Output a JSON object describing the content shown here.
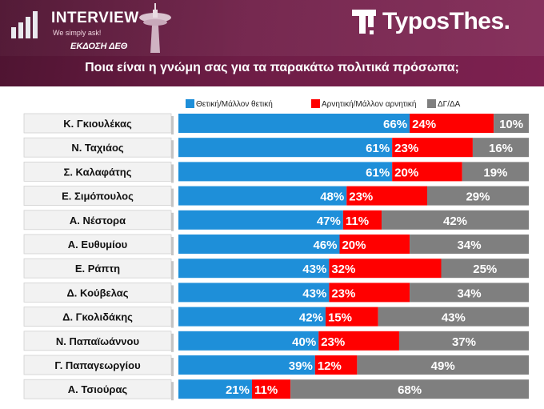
{
  "header": {
    "interview_title": "INTERVIEW",
    "interview_tagline": "We simply ask!",
    "edition_label": "ΕΚΔΟΣΗ ΔΕΘ",
    "brand_name": "TyposThes.",
    "question": "Ποια είναι η γνώμη σας για τα παρακάτω πολιτικά πρόσωπα;"
  },
  "colors": {
    "header_bg": "#6e1d46",
    "positive": "#1e8fd9",
    "negative": "#ff0000",
    "dk": "#7f7f7f",
    "name_box": "#f2f2f2"
  },
  "chart_data": {
    "type": "bar",
    "orientation": "horizontal",
    "stacked": true,
    "title": "Ποια είναι η γνώμη σας για τα παρακάτω πολιτικά πρόσωπα;",
    "legend_position": "top-right",
    "categories": [
      "Κ. Γκιουλέκας",
      "Ν. Ταχιάος",
      "Σ. Καλαφάτης",
      "Ε. Σιμόπουλος",
      "Α. Νέστορα",
      "Α. Ευθυμίου",
      "Ε. Ράπτη",
      "Δ. Κούβελας",
      "Δ. Γκολιδάκης",
      "Ν. Παπαϊωάννου",
      "Γ. Παπαγεωργίου",
      "Α. Τσιούρας"
    ],
    "series": [
      {
        "name": "Θετική/Μάλλον θετική",
        "color": "#1e8fd9",
        "values": [
          66,
          61,
          61,
          48,
          47,
          46,
          43,
          43,
          42,
          40,
          39,
          21
        ],
        "labels": [
          "66%",
          "61%",
          "61%",
          "48%",
          "47%",
          "46%",
          "43%",
          "43%",
          "42%",
          "40%",
          "39%",
          "21%"
        ]
      },
      {
        "name": "Αρνητική/Μάλλον αρνητική",
        "color": "#ff0000",
        "values": [
          24,
          23,
          20,
          23,
          11,
          20,
          32,
          23,
          15,
          23,
          12,
          11
        ],
        "labels": [
          "24%",
          "23%",
          "20%",
          "23%",
          "11%",
          "20%",
          "32%",
          "23%",
          "15%",
          "23%",
          "12%",
          "11%"
        ]
      },
      {
        "name": "ΔΓ/ΔΑ",
        "color": "#7f7f7f",
        "values": [
          10,
          16,
          19,
          29,
          42,
          34,
          25,
          34,
          43,
          37,
          49,
          68
        ],
        "labels": [
          "10%",
          "16%",
          "19%",
          "29%",
          "42%",
          "34%",
          "25%",
          "34%",
          "43%",
          "37%",
          "49%",
          "68%"
        ]
      }
    ],
    "xlim": [
      0,
      100
    ]
  }
}
